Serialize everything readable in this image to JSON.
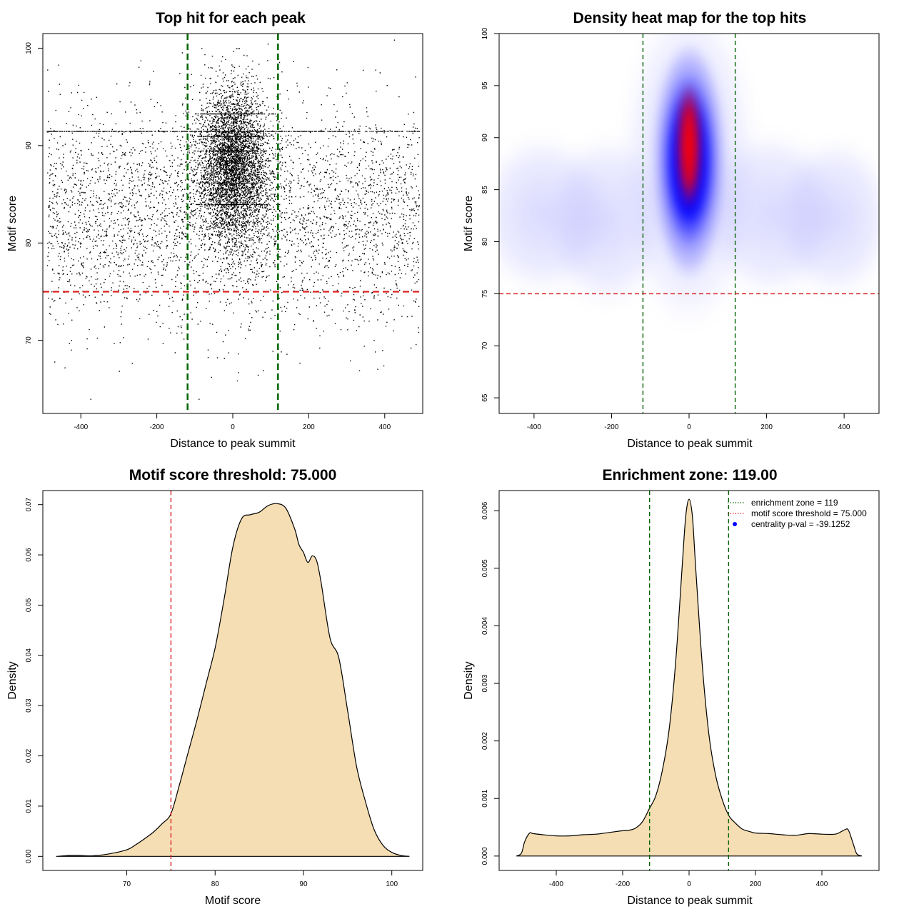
{
  "colors": {
    "threshold_line": "#dd2222",
    "zone_line": "#006400",
    "density_fill": "#f5deb3",
    "heat_low": "#ffffff",
    "heat_mid": "#0000ff",
    "heat_high": "#ff0000",
    "legend_point": "#0000ff"
  },
  "chart_data": [
    {
      "id": "scatter",
      "type": "scatter",
      "title": "Top hit for each peak",
      "xlabel": "Distance to peak summit",
      "ylabel": "Motif score",
      "xlim": [
        -500,
        500
      ],
      "ylim": [
        62.5,
        101.5
      ],
      "xticks": [
        -400,
        -200,
        0,
        200,
        400
      ],
      "yticks": [
        70,
        80,
        90,
        100
      ],
      "grid": false,
      "vlines": [
        -119,
        119
      ],
      "hline": 75,
      "point_clouds": [
        {
          "name": "background",
          "x_range": [
            -490,
            490
          ],
          "y_mean": 83,
          "y_sd": 5.5,
          "count": 4200
        },
        {
          "name": "central",
          "x_center": 0,
          "x_sd": 45,
          "y_mean": 88,
          "y_sd": 4,
          "count": 5200
        }
      ],
      "sample_points": [
        {
          "x": -375,
          "y": 64
        },
        {
          "x": -90,
          "y": 64
        },
        {
          "x": 375,
          "y": 97.8
        },
        {
          "x": -410,
          "y": 95.5
        },
        {
          "x": 300,
          "y": 96.5
        }
      ]
    },
    {
      "id": "heatmap",
      "type": "heatmap",
      "title": "Density heat map for the top hits",
      "xlabel": "Distance to peak summit",
      "ylabel": "Motif score",
      "xlim": [
        -490,
        490
      ],
      "ylim": [
        63.5,
        100
      ],
      "xticks": [
        -400,
        -200,
        0,
        200,
        400
      ],
      "yticks": [
        65,
        70,
        75,
        80,
        85,
        90,
        95,
        100
      ],
      "grid": false,
      "vlines": [
        -119,
        119
      ],
      "hline": 75,
      "hotspot": {
        "x": 0,
        "y": 88.5
      }
    },
    {
      "id": "density-score",
      "type": "area",
      "title": "Motif score threshold: 75.000",
      "xlabel": "Motif score",
      "ylabel": "Density",
      "xlim": [
        60.5,
        103.5
      ],
      "ylim": [
        -0.0028,
        0.0728
      ],
      "xticks": [
        70,
        80,
        90,
        100
      ],
      "yticks": [
        0.0,
        0.01,
        0.02,
        0.03,
        0.04,
        0.05,
        0.06,
        0.07
      ],
      "ytick_labels": [
        "0.00",
        "0.01",
        "0.02",
        "0.03",
        "0.04",
        "0.05",
        "0.06",
        "0.07"
      ],
      "grid": false,
      "vline": 75,
      "x": [
        62,
        64,
        66,
        68,
        70,
        71,
        72,
        73,
        74,
        75,
        76,
        77,
        78,
        79,
        80,
        81,
        82,
        83,
        84,
        85,
        86,
        87,
        88,
        89,
        89.5,
        90,
        90.5,
        91,
        91.5,
        92,
        93,
        94,
        95,
        96,
        97,
        98,
        99,
        100,
        101,
        102
      ],
      "y": [
        0,
        0.0002,
        0.0001,
        0.0005,
        0.0013,
        0.0023,
        0.0035,
        0.0048,
        0.0065,
        0.0085,
        0.0145,
        0.021,
        0.0275,
        0.0345,
        0.0415,
        0.051,
        0.0615,
        0.0672,
        0.068,
        0.0685,
        0.0698,
        0.0702,
        0.0693,
        0.0652,
        0.062,
        0.0605,
        0.0585,
        0.0598,
        0.0588,
        0.0545,
        0.0435,
        0.0395,
        0.029,
        0.018,
        0.011,
        0.0053,
        0.0022,
        0.0008,
        0.0002,
        0
      ]
    },
    {
      "id": "density-distance",
      "type": "area",
      "title": "Enrichment zone: 119.00",
      "xlabel": "Distance to peak summit",
      "ylabel": "Density",
      "xlim": [
        -572,
        572
      ],
      "ylim": [
        -0.00025,
        0.00635
      ],
      "xticks": [
        -400,
        -200,
        0,
        200,
        400
      ],
      "yticks": [
        0.0,
        0.001,
        0.002,
        0.003,
        0.004,
        0.005,
        0.006
      ],
      "ytick_labels": [
        "0.000",
        "0.001",
        "0.002",
        "0.003",
        "0.004",
        "0.005",
        "0.006"
      ],
      "grid": false,
      "vlines": [
        -119,
        119
      ],
      "x": [
        -520,
        -505,
        -495,
        -480,
        -470,
        -440,
        -400,
        -360,
        -320,
        -280,
        -240,
        -200,
        -180,
        -160,
        -140,
        -120,
        -100,
        -80,
        -60,
        -40,
        -20,
        -10,
        0,
        10,
        20,
        40,
        60,
        80,
        100,
        120,
        140,
        160,
        180,
        200,
        240,
        280,
        320,
        360,
        400,
        440,
        460,
        470,
        480,
        495,
        505,
        520
      ],
      "y": [
        0,
        5e-05,
        0.00025,
        0.0004,
        0.00039,
        0.00037,
        0.00035,
        0.00035,
        0.00037,
        0.00038,
        0.00041,
        0.00044,
        0.00045,
        0.00049,
        0.0006,
        0.00082,
        0.00105,
        0.0015,
        0.0022,
        0.0034,
        0.0051,
        0.0059,
        0.0062,
        0.0059,
        0.005,
        0.0033,
        0.0021,
        0.0014,
        0.00098,
        0.0007,
        0.00057,
        0.00047,
        0.00043,
        0.0004,
        0.00039,
        0.00037,
        0.00036,
        0.00039,
        0.00038,
        0.00038,
        0.00043,
        0.00046,
        0.00045,
        0.0002,
        4e-05,
        0
      ],
      "legend": {
        "position": "top-right",
        "entries": [
          {
            "label": "enrichment zone = 119",
            "style": "dotted",
            "color": "#006400"
          },
          {
            "label": "motif score threshold = 75.000",
            "style": "dotted",
            "color": "#dd2222"
          },
          {
            "label": "centrality p-val = -39.1252",
            "style": "point",
            "color": "#0000ff"
          }
        ]
      }
    }
  ]
}
